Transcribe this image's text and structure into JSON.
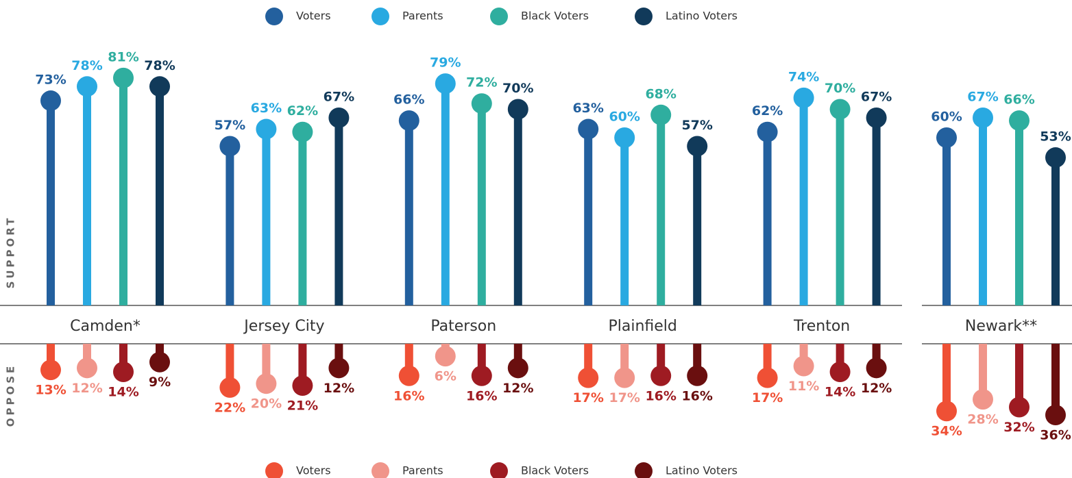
{
  "chart_data": {
    "type": "lollipop",
    "support_label": "SUPPORT",
    "oppose_label": "OPPOSE",
    "categories": [
      "Camden*",
      "Jersey City",
      "Paterson",
      "Plainfield",
      "Trenton",
      "Newark**"
    ],
    "support": [
      {
        "name": "Voters",
        "color": "#23609e",
        "values": [
          73,
          57,
          66,
          63,
          62,
          60
        ],
        "value_labels": [
          "73%",
          "57%",
          "66%",
          "63%",
          "62%",
          "60%"
        ]
      },
      {
        "name": "Parents",
        "color": "#29a9e1",
        "values": [
          78,
          63,
          79,
          60,
          74,
          67
        ],
        "value_labels": [
          "78%",
          "63%",
          "79%",
          "60%",
          "74%",
          "67%"
        ]
      },
      {
        "name": "Black Voters",
        "color": "#2fae9f",
        "values": [
          81,
          62,
          72,
          68,
          70,
          66
        ],
        "value_labels": [
          "81%",
          "62%",
          "72%",
          "68%",
          "70%",
          "66%"
        ]
      },
      {
        "name": "Latino Voters",
        "color": "#113a5a",
        "values": [
          78,
          67,
          70,
          57,
          67,
          53
        ],
        "value_labels": [
          "78%",
          "67%",
          "70%",
          "57%",
          "67%",
          "53%"
        ]
      }
    ],
    "oppose": [
      {
        "name": "Voters",
        "color": "#ef5035",
        "values": [
          13,
          22,
          16,
          17,
          17,
          34
        ],
        "value_labels": [
          "13%",
          "22%",
          "16%",
          "17%",
          "17%",
          "34%"
        ]
      },
      {
        "name": "Parents",
        "color": "#f0958a",
        "values": [
          12,
          20,
          6,
          17,
          11,
          28
        ],
        "value_labels": [
          "12%",
          "20%",
          "6%",
          "17%",
          "11%",
          "28%"
        ]
      },
      {
        "name": "Black Voters",
        "color": "#9e1b22",
        "values": [
          14,
          21,
          16,
          16,
          14,
          32
        ],
        "value_labels": [
          "14%",
          "21%",
          "16%",
          "16%",
          "14%",
          "32%"
        ]
      },
      {
        "name": "Latino Voters",
        "color": "#6a0f0f",
        "values": [
          9,
          12,
          12,
          16,
          12,
          36
        ],
        "value_labels": [
          "9%",
          "12%",
          "12%",
          "16%",
          "12%",
          "36%"
        ]
      }
    ]
  }
}
